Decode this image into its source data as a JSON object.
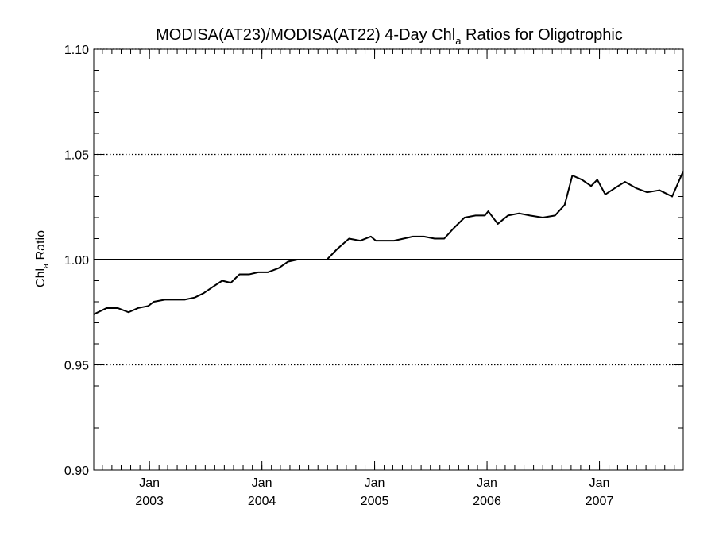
{
  "chart_data": {
    "type": "line",
    "title_main": "MODISA(AT23)/MODISA(AT22) 4-Day Chl",
    "title_sub": "a",
    "title_rest": " Ratios for Oligotrophic",
    "ylabel_main": "Chl",
    "ylabel_sub": "a",
    "ylabel_rest": " Ratio",
    "ylim": [
      0.9,
      1.1
    ],
    "xlim": [
      "2002-07-04",
      "2007-09-30"
    ],
    "y_ticks": [
      "0.90",
      "0.95",
      "1.00",
      "1.05",
      "1.10"
    ],
    "x_ticks": [
      {
        "month": "Jan",
        "year": "2003",
        "date": "2003-01-01"
      },
      {
        "month": "Jan",
        "year": "2004",
        "date": "2004-01-01"
      },
      {
        "month": "Jan",
        "year": "2005",
        "date": "2005-01-01"
      },
      {
        "month": "Jan",
        "year": "2006",
        "date": "2006-01-01"
      },
      {
        "month": "Jan",
        "year": "2007",
        "date": "2007-01-01"
      }
    ],
    "grid": "dotted horizontal at major y ticks",
    "reference_line": 1.0,
    "colors": {
      "line": "#000000",
      "background": "#ffffff"
    },
    "series": [
      {
        "x": [
          "2002-07-04",
          "2002-08-15",
          "2002-09-20",
          "2002-10-25",
          "2002-11-25",
          "2002-12-28",
          "2003-01-15",
          "2003-02-20",
          "2003-03-25",
          "2003-04-25",
          "2003-05-28",
          "2003-06-25",
          "2003-07-25",
          "2003-08-25",
          "2003-09-22",
          "2003-10-20",
          "2003-11-20",
          "2003-12-20",
          "2004-01-20",
          "2004-02-25",
          "2004-03-25",
          "2004-04-25",
          "2004-05-28",
          "2004-06-28",
          "2004-07-30",
          "2004-09-01",
          "2004-10-10",
          "2004-11-15",
          "2004-12-20",
          "2005-01-05",
          "2005-02-01",
          "2005-03-05",
          "2005-04-05",
          "2005-05-05",
          "2005-06-10",
          "2005-07-15",
          "2005-08-15",
          "2005-09-15",
          "2005-10-20",
          "2005-11-25",
          "2005-12-25",
          "2006-01-05",
          "2006-02-05",
          "2006-03-10",
          "2006-04-15",
          "2006-05-20",
          "2006-07-01",
          "2006-08-10",
          "2006-09-10",
          "2006-10-05",
          "2006-11-05",
          "2006-12-05",
          "2006-12-25",
          "2007-01-20",
          "2007-02-20",
          "2007-03-25",
          "2007-04-30",
          "2007-06-05",
          "2007-07-15",
          "2007-08-25",
          "2007-09-30"
        ],
        "y": [
          0.974,
          0.977,
          0.977,
          0.975,
          0.977,
          0.978,
          0.98,
          0.981,
          0.981,
          0.981,
          0.982,
          0.984,
          0.987,
          0.99,
          0.989,
          0.993,
          0.993,
          0.994,
          0.994,
          0.996,
          0.999,
          1.0,
          1.0,
          1.0,
          1.0,
          1.005,
          1.01,
          1.009,
          1.011,
          1.009,
          1.009,
          1.009,
          1.01,
          1.011,
          1.011,
          1.01,
          1.01,
          1.015,
          1.02,
          1.021,
          1.021,
          1.023,
          1.017,
          1.021,
          1.022,
          1.021,
          1.02,
          1.021,
          1.026,
          1.04,
          1.038,
          1.035,
          1.038,
          1.031,
          1.034,
          1.037,
          1.034,
          1.032,
          1.033,
          1.03,
          1.042
        ]
      }
    ]
  }
}
